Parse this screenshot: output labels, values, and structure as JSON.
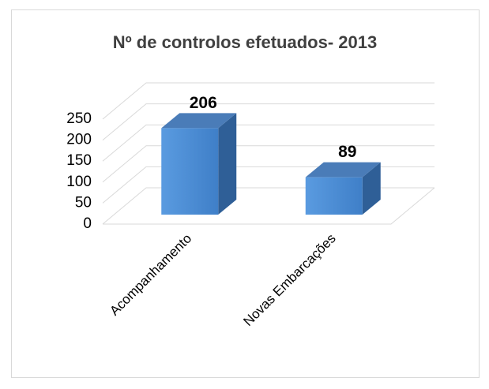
{
  "chart_data": {
    "type": "bar",
    "title": "Nº de controlos efetuados- 2013",
    "categories": [
      "Acompanhamento",
      "Novas Embarcações"
    ],
    "values": [
      206,
      89
    ],
    "color": "#4f8fd6",
    "ylim": [
      0,
      250
    ],
    "yticks": [
      0,
      50,
      100,
      150,
      200,
      250
    ],
    "grid": true
  }
}
